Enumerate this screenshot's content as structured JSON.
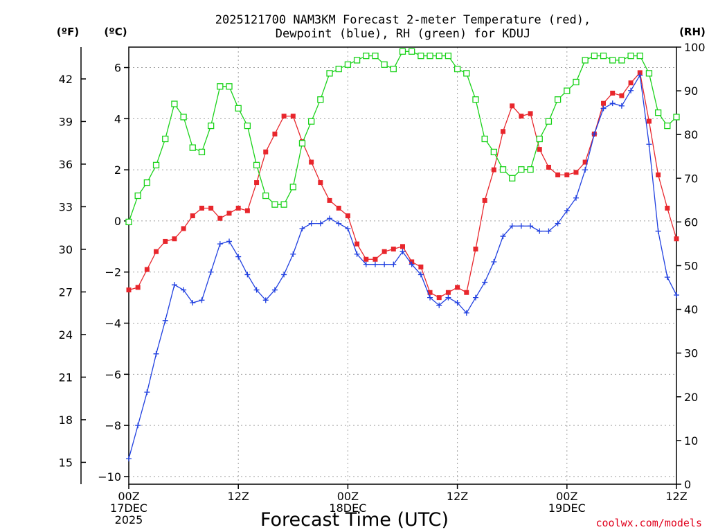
{
  "chart_data": {
    "type": "line",
    "title": [
      "2025121700 NAM3KM Forecast 2-meter Temperature (red),",
      "Dewpoint (blue), RH (green) for KDUJ"
    ],
    "xlabel": "Forecast Time (UTC)",
    "left_unit_f": "(ºF)",
    "left_unit_c": "(ºC)",
    "right_unit": "(RH)",
    "credit": "coolwx.com/models",
    "xlim": [
      0,
      60
    ],
    "ylim_c": [
      -10.3,
      6.8
    ],
    "ylim_rh": [
      0,
      100
    ],
    "x_ticks": [
      {
        "x": 0,
        "lines": [
          "00Z",
          "17DEC",
          "2025"
        ]
      },
      {
        "x": 12,
        "lines": [
          "12Z"
        ]
      },
      {
        "x": 24,
        "lines": [
          "00Z",
          "18DEC"
        ]
      },
      {
        "x": 36,
        "lines": [
          "12Z"
        ]
      },
      {
        "x": 48,
        "lines": [
          "00Z",
          "19DEC"
        ]
      },
      {
        "x": 60,
        "lines": [
          "12Z"
        ]
      }
    ],
    "celsius_ticks": [
      -10,
      -8,
      -6,
      -4,
      -2,
      0,
      2,
      4,
      6
    ],
    "celsius_tick_labels": [
      "−10",
      "−8",
      "−6",
      "−4",
      "−2",
      "0",
      "2",
      "4",
      "6"
    ],
    "fahrenheit_ticks": [
      15,
      18,
      21,
      24,
      27,
      30,
      33,
      36,
      39,
      42
    ],
    "rh_ticks": [
      0,
      10,
      20,
      30,
      40,
      50,
      60,
      70,
      80,
      90,
      100
    ],
    "hours": [
      0,
      1,
      2,
      3,
      4,
      5,
      6,
      7,
      8,
      9,
      10,
      11,
      12,
      13,
      14,
      15,
      16,
      17,
      18,
      19,
      20,
      21,
      22,
      23,
      24,
      25,
      26,
      27,
      28,
      29,
      30,
      31,
      32,
      33,
      34,
      35,
      36,
      37,
      38,
      39,
      40,
      41,
      42,
      43,
      44,
      45,
      46,
      47,
      48,
      49,
      50,
      51,
      52,
      53,
      54,
      55,
      56,
      57,
      58,
      59,
      60
    ],
    "series": [
      {
        "name": "Temperature",
        "units": "C",
        "color": "#e8262c",
        "marker": "filled-square",
        "values": [
          -2.7,
          -2.6,
          -1.9,
          -1.2,
          -0.8,
          -0.7,
          -0.3,
          0.2,
          0.5,
          0.5,
          0.1,
          0.3,
          0.5,
          0.4,
          1.5,
          2.7,
          3.4,
          4.1,
          4.1,
          3.1,
          2.3,
          1.5,
          0.8,
          0.5,
          0.2,
          -0.9,
          -1.5,
          -1.5,
          -1.2,
          -1.1,
          -1.0,
          -1.6,
          -1.8,
          -2.8,
          -3.0,
          -2.8,
          -2.6,
          -2.8,
          -1.1,
          0.8,
          2.0,
          3.5,
          4.5,
          4.1,
          4.2,
          2.8,
          2.1,
          1.8,
          1.8,
          1.9,
          2.3,
          3.4,
          4.6,
          5.0,
          4.9,
          5.4,
          5.8,
          3.9,
          1.8,
          0.5,
          -0.7
        ]
      },
      {
        "name": "Dewpoint",
        "units": "C",
        "color": "#1f3fe0",
        "marker": "plus",
        "values": [
          -9.3,
          -8.0,
          -6.7,
          -5.2,
          -3.9,
          -2.5,
          -2.7,
          -3.2,
          -3.1,
          -2.0,
          -0.9,
          -0.8,
          -1.4,
          -2.1,
          -2.7,
          -3.1,
          -2.7,
          -2.1,
          -1.3,
          -0.3,
          -0.1,
          -0.1,
          0.1,
          -0.1,
          -0.3,
          -1.3,
          -1.7,
          -1.7,
          -1.7,
          -1.7,
          -1.2,
          -1.7,
          -2.1,
          -3.0,
          -3.3,
          -3.0,
          -3.2,
          -3.6,
          -3.0,
          -2.4,
          -1.6,
          -0.6,
          -0.2,
          -0.2,
          -0.2,
          -0.4,
          -0.4,
          -0.1,
          0.4,
          0.9,
          2.0,
          3.4,
          4.4,
          4.6,
          4.5,
          5.1,
          5.7,
          3.0,
          -0.4,
          -2.2,
          -2.9
        ]
      },
      {
        "name": "RH",
        "units": "%",
        "color": "#19d219",
        "marker": "open-square",
        "values": [
          60,
          66,
          69,
          73,
          79,
          87,
          84,
          77,
          76,
          82,
          91,
          91,
          86,
          82,
          73,
          66,
          64,
          64,
          68,
          78,
          83,
          88,
          94,
          95,
          96,
          97,
          98,
          98,
          96,
          95,
          99,
          99,
          98,
          98,
          98,
          98,
          95,
          94,
          88,
          79,
          76,
          72,
          70,
          72,
          72,
          79,
          83,
          88,
          90,
          92,
          97,
          98,
          98,
          97,
          97,
          98,
          98,
          94,
          85,
          82,
          84
        ]
      }
    ]
  }
}
